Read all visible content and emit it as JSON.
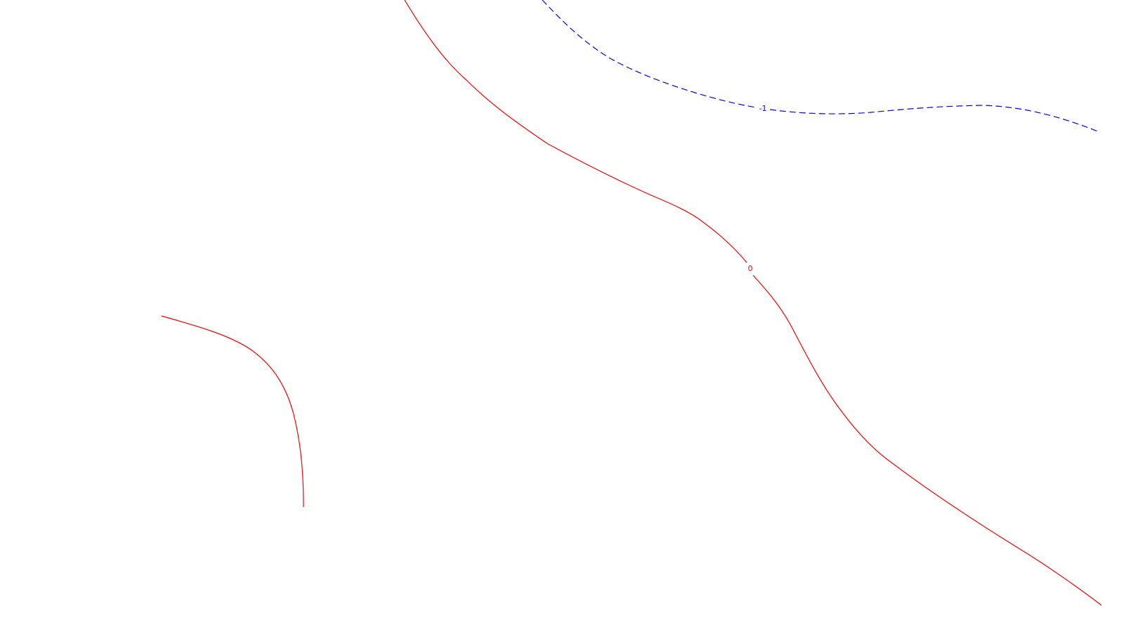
{
  "chart_data": {
    "type": "contour",
    "title": "",
    "xlabel": "",
    "ylabel": "",
    "grid": false,
    "legend": "none",
    "levels": [
      {
        "level": "0",
        "color": "#ff0000",
        "line_style": "solid",
        "label": "0"
      },
      {
        "level": "-1",
        "color": "#0000ff",
        "line_style": "dashed",
        "label": "-1"
      }
    ]
  }
}
